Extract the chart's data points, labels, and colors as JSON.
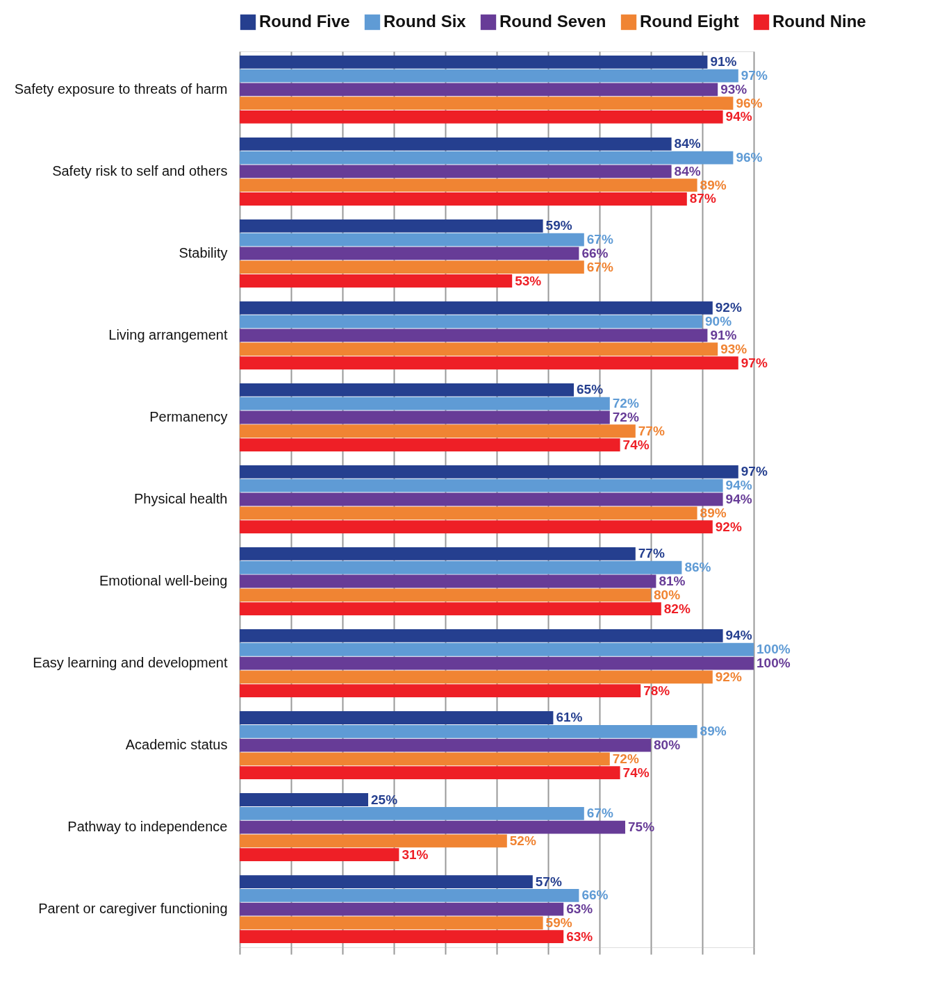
{
  "chart_data": {
    "type": "bar",
    "orientation": "horizontal",
    "legend": "top",
    "grid": "x",
    "tick_labels": "y",
    "categories": [
      "Safety exposure to threats of harm",
      "Safety risk to self and others",
      "Stability",
      "Living arrangement",
      "Permanency",
      "Physical health",
      "Emotional well-being",
      "Easy learning and development",
      "Academic status",
      "Pathway to independence",
      "Parent or caregiver functioning"
    ],
    "xlim": [
      0,
      100
    ],
    "xticks": [
      {
        "value": 0,
        "label": null
      },
      {
        "value": 10,
        "label": null
      },
      {
        "value": 20,
        "label": null
      },
      {
        "value": 30,
        "label": null
      },
      {
        "value": 40,
        "label": null
      },
      {
        "value": 50,
        "label": null
      },
      {
        "value": 60,
        "label": null
      },
      {
        "value": 70,
        "label": null
      },
      {
        "value": 80,
        "label": null
      },
      {
        "value": 90,
        "label": null
      },
      {
        "value": 100,
        "label": null
      }
    ],
    "series": [
      {
        "name": "Round Five",
        "color": "#253f8f",
        "values": [
          91,
          84,
          59,
          92,
          65,
          97,
          77,
          94,
          61,
          25,
          57
        ],
        "value_labels": [
          "91%",
          "84%",
          "59%",
          "92%",
          "65%",
          "97%",
          "77%",
          "94%",
          "61%",
          "25%",
          "57%"
        ]
      },
      {
        "name": "Round Six",
        "color": "#5f9bd5",
        "values": [
          97,
          96,
          67,
          90,
          72,
          94,
          86,
          100,
          89,
          67,
          66
        ],
        "value_labels": [
          "97%",
          "96%",
          "67%",
          "90%",
          "72%",
          "94%",
          "86%",
          "100%",
          "89%",
          "67%",
          "66%"
        ]
      },
      {
        "name": "Round Seven",
        "color": "#673c97",
        "values": [
          93,
          84,
          66,
          91,
          72,
          94,
          81,
          100,
          80,
          75,
          63
        ],
        "value_labels": [
          "93%",
          "84%",
          "66%",
          "91%",
          "72%",
          "94%",
          "81%",
          "100%",
          "80%",
          "75%",
          "63%"
        ]
      },
      {
        "name": "Round Eight",
        "color": "#f08433",
        "values": [
          96,
          89,
          67,
          93,
          77,
          89,
          80,
          92,
          72,
          52,
          59
        ],
        "value_labels": [
          "96%",
          "89%",
          "67%",
          "93%",
          "77%",
          "89%",
          "80%",
          "92%",
          "72%",
          "52%",
          "59%"
        ]
      },
      {
        "name": "Round Nine",
        "color": "#ee1f26",
        "values": [
          94,
          87,
          53,
          97,
          74,
          92,
          82,
          78,
          74,
          31,
          63
        ],
        "value_labels": [
          "94%",
          "87%",
          "53%",
          "97%",
          "74%",
          "92%",
          "82%",
          "78%",
          "74%",
          "31%",
          "63%"
        ]
      }
    ]
  }
}
